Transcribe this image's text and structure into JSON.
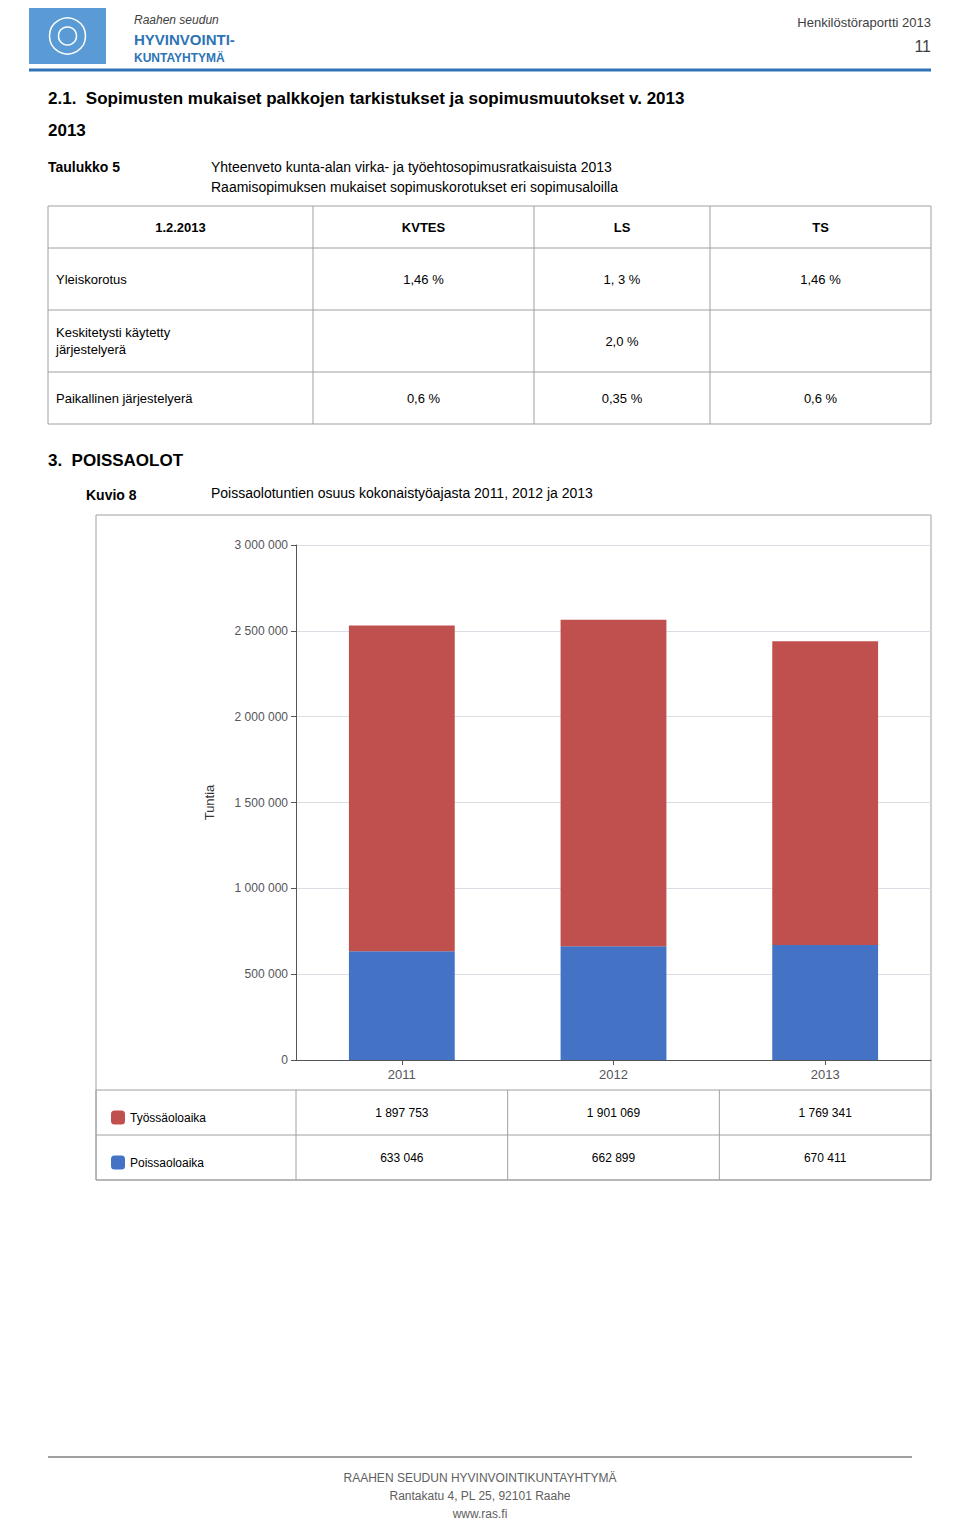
{
  "chart_data": {
    "type": "bar",
    "title": "Poissaolotuntien osuus kokonaistyöajasta 2011, 2012 ja 2013",
    "categories": [
      "2011",
      "2012",
      "2013"
    ],
    "series": [
      {
        "name": "Poissaoloaika",
        "color": "#4472C4",
        "values": [
          633046,
          662899,
          670411
        ],
        "value_labels": [
          "633 046",
          "662 899",
          "670 411"
        ]
      },
      {
        "name": "Työssäoloaika",
        "color": "#C0504D",
        "values": [
          1897753,
          1901069,
          1769341
        ],
        "value_labels": [
          "1 897 753",
          "1 901 069",
          "1 769 341"
        ]
      }
    ],
    "stacked": true,
    "ylabel": "Tuntia",
    "ylim": [
      0,
      3000000
    ],
    "yticks": [
      0,
      {
        "value": 500000,
        "label": "500 000"
      },
      {
        "value": 1000000,
        "label": "1 000 000"
      },
      {
        "value": 1500000,
        "label": "1 500 000"
      },
      {
        "value": 2000000,
        "label": "2 000 000"
      },
      {
        "value": 2500000,
        "label": "2 500 000"
      },
      {
        "value": 3000000,
        "label": "3 000 000"
      }
    ],
    "grid": true,
    "legend": "bottom"
  },
  "page": {
    "org_name": [
      "Raahen seudun",
      "HYVINVOINTI-",
      "KUNTAYHTYMÄ"
    ],
    "header_right": "Henkilöstöraportti 2013",
    "header_page": "11",
    "section_title": "2.1.  Sopimusten mukaiset palkkojen tarkistukset ja sopimusmuutokset v. 2013",
    "section_subtitle": "2013",
    "table_label": "Taulukko 5",
    "table_caption": [
      "Yhteenveto kunta-alan virka- ja työehtosopimusratkaisuista 2013",
      "Raamisopimuksen mukaiset sopimuskorotukset eri sopimusaloilla"
    ],
    "table": {
      "columns": [
        "1.2.2013",
        "KVTES",
        "LS",
        "TS"
      ],
      "rows": [
        [
          "Yleiskorotus",
          "1,46 %",
          "1, 3 %",
          "1,46 %"
        ],
        [
          "Keskitetysti käytetty\njärjestelyerä",
          null,
          "2,0 %",
          null
        ],
        [
          "Paikallinen järjestelyerä",
          "0,6 %",
          "0,35 %",
          "0,6 %"
        ]
      ]
    },
    "section2_title": "3.  POISSAOLOT",
    "figure_label": "Kuvio 8",
    "footer": [
      "RAAHEN SEUDUN HYVINVOINTIKUNTAYHTYMÄ",
      "Rantakatu 4, PL 25, 92101 Raahe",
      "www.ras.fi"
    ]
  }
}
